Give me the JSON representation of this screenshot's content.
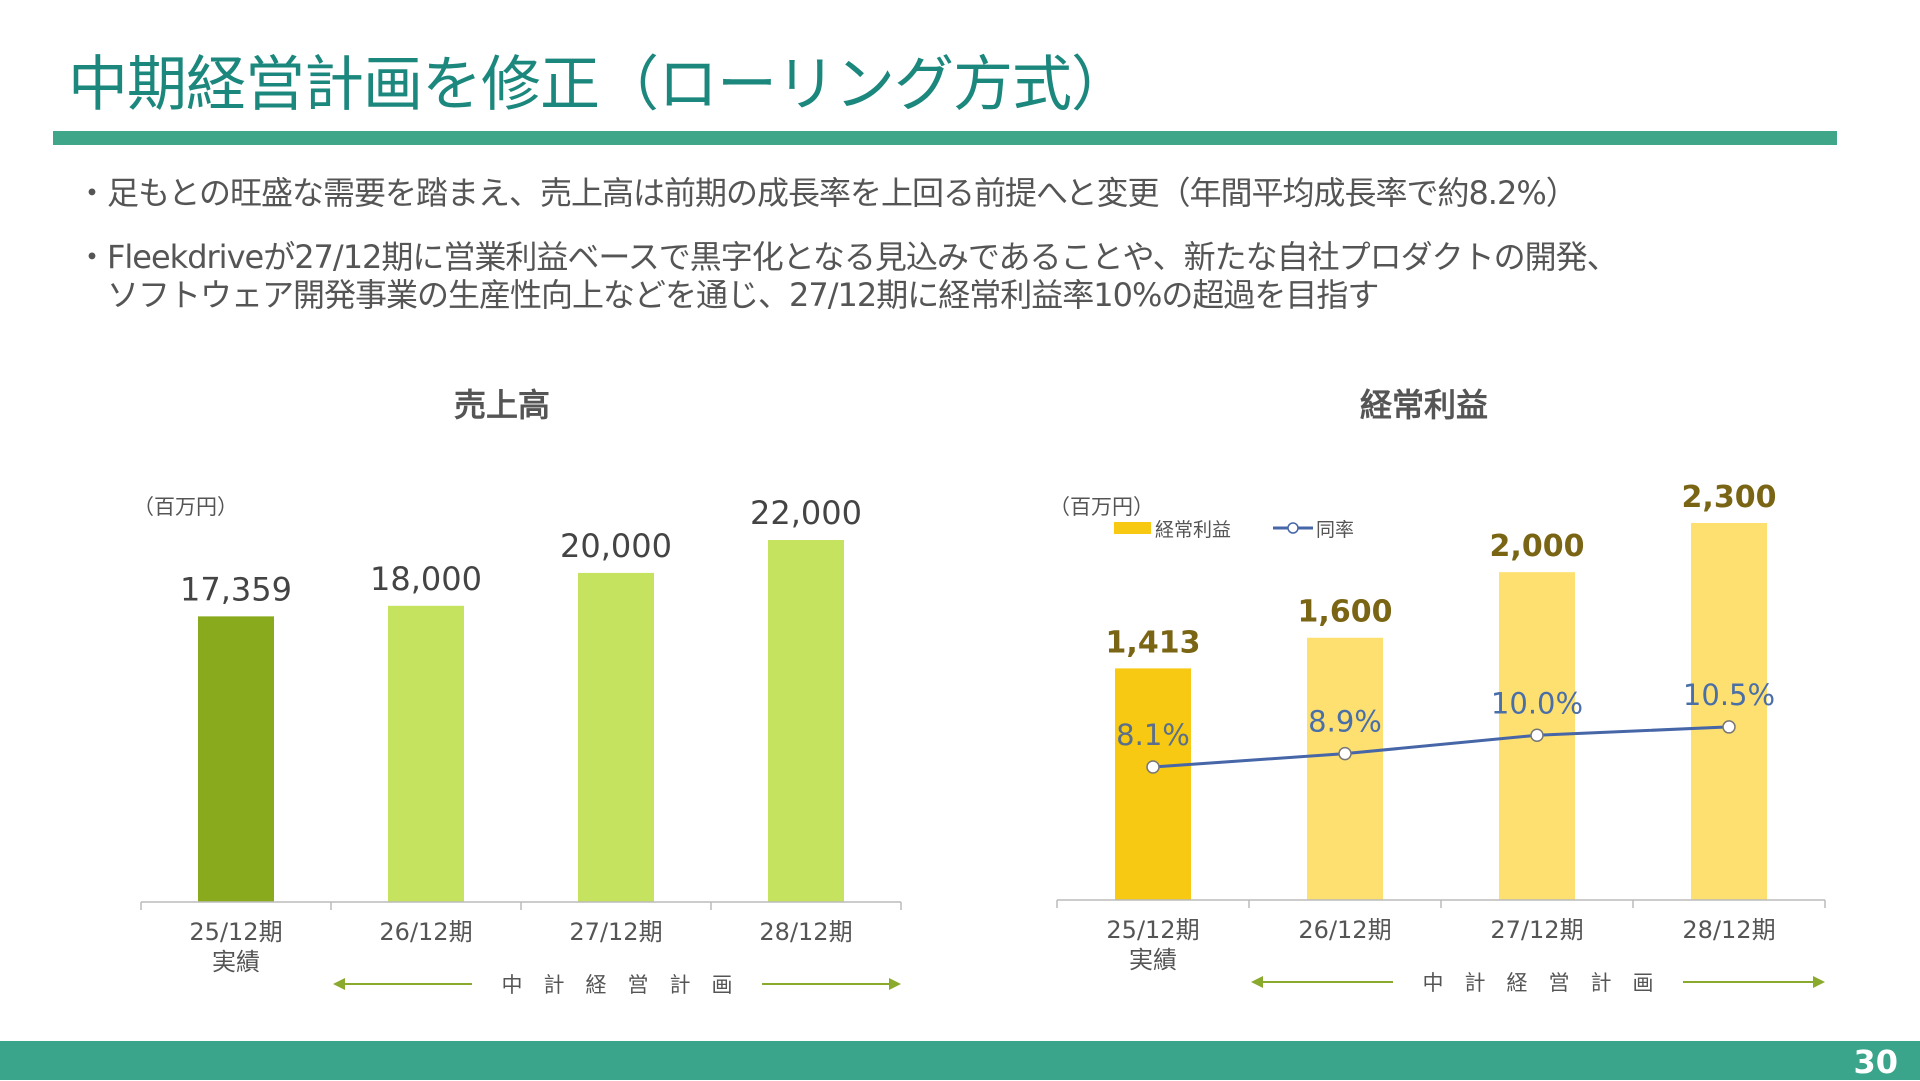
{
  "title": "中期経営計画を修正（ローリング方式）",
  "bullets": [
    "・足もとの旺盛な需要を踏まえ、売上高は前期の成長率を上回る前提へと変更（年間平均成長率で約8.2%）",
    "・Fleekdriveが27/12期に営業利益ベースで黒字化となる見込みであることや、新たな自社プロダクトの開発、",
    "　ソフトウェア開発事業の生産性向上などを通じ、27/12期に経常利益率10%の超過を目指す"
  ],
  "page_number": "30",
  "colors": {
    "accent": "#1b877d",
    "rule": "#3fa68a"
  },
  "chart_data": [
    {
      "type": "bar",
      "title": "売上高",
      "unit": "（百万円）",
      "categories": [
        "25/12期",
        "26/12期",
        "27/12期",
        "28/12期"
      ],
      "sublabels": [
        "実績",
        "",
        "",
        ""
      ],
      "values": [
        17359,
        18000,
        20000,
        22000
      ],
      "value_labels": [
        "17,359",
        "18,000",
        "20,000",
        "22,000"
      ],
      "colors": [
        "#8aaa1e",
        "#c5e35e",
        "#c5e35e",
        "#c5e35e"
      ],
      "plan_label": "中　計　経　営　計　画",
      "ylim": [
        0,
        22000
      ]
    },
    {
      "type": "bar+line",
      "title": "経常利益",
      "unit": "（百万円）",
      "legend": [
        "経常利益",
        "同率"
      ],
      "legend_placement": "top-left",
      "categories": [
        "25/12期",
        "26/12期",
        "27/12期",
        "28/12期"
      ],
      "sublabels": [
        "実績",
        "",
        "",
        ""
      ],
      "series": [
        {
          "name": "経常利益",
          "values": [
            1413,
            1600,
            2000,
            2300
          ],
          "labels": [
            "1,413",
            "1,600",
            "2,000",
            "2,300"
          ],
          "colors": [
            "#f7c912",
            "#fde070",
            "#fde070",
            "#fde070"
          ]
        },
        {
          "name": "同率",
          "values": [
            8.1,
            8.9,
            10.0,
            10.5
          ],
          "labels": [
            "8.1%",
            "8.9%",
            "10.0%",
            "10.5%"
          ],
          "color": "#4666a8"
        }
      ],
      "plan_label": "中　計　経　営　計　画",
      "ylim": [
        0,
        2300
      ]
    }
  ]
}
